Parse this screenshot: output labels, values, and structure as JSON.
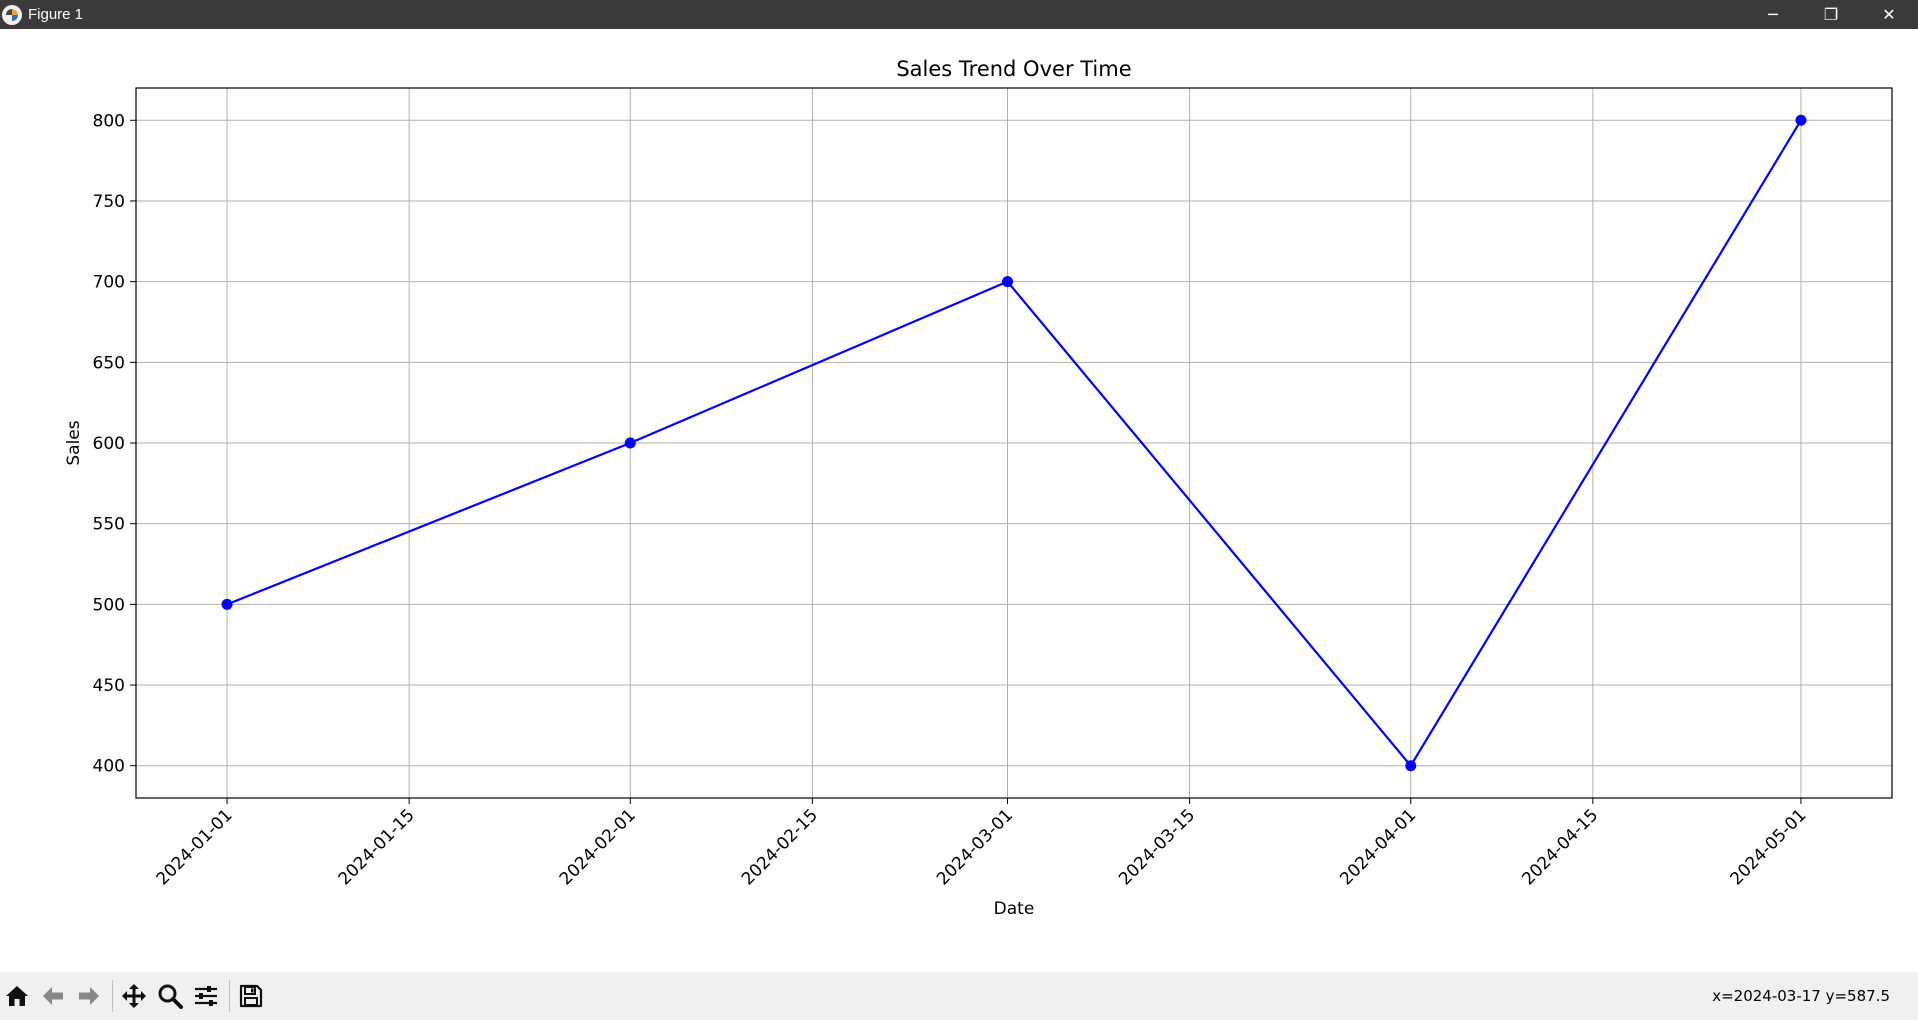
{
  "window": {
    "title": "Figure 1",
    "minimize": "─",
    "maximize": "❐",
    "close": "✕"
  },
  "chart_data": {
    "type": "line",
    "title": "Sales Trend Over Time",
    "xlabel": "Date",
    "ylabel": "Sales",
    "x": [
      "2024-01-01",
      "2024-02-01",
      "2024-03-01",
      "2024-04-01",
      "2024-05-01"
    ],
    "series": [
      {
        "values": [
          500,
          600,
          700,
          400,
          800
        ],
        "color": "#0000ff",
        "marker": "circle"
      }
    ],
    "x_ticks": [
      "2024-01-01",
      "2024-01-15",
      "2024-02-01",
      "2024-02-15",
      "2024-03-01",
      "2024-03-15",
      "2024-04-01",
      "2024-04-15",
      "2024-05-01"
    ],
    "y_ticks": [
      400,
      450,
      500,
      550,
      600,
      650,
      700,
      750,
      800
    ],
    "xlim": [
      "2023-12-25",
      "2024-05-08"
    ],
    "ylim": [
      380,
      820
    ],
    "grid": true
  },
  "toolbar": {
    "tools": [
      {
        "name": "home-icon"
      },
      {
        "name": "back-icon"
      },
      {
        "name": "forward-icon"
      },
      {
        "name": "pan-icon"
      },
      {
        "name": "zoom-icon"
      },
      {
        "name": "configure-subplots-icon"
      },
      {
        "name": "save-icon"
      }
    ],
    "coords": "x=2024-03-17 y=587.5"
  }
}
